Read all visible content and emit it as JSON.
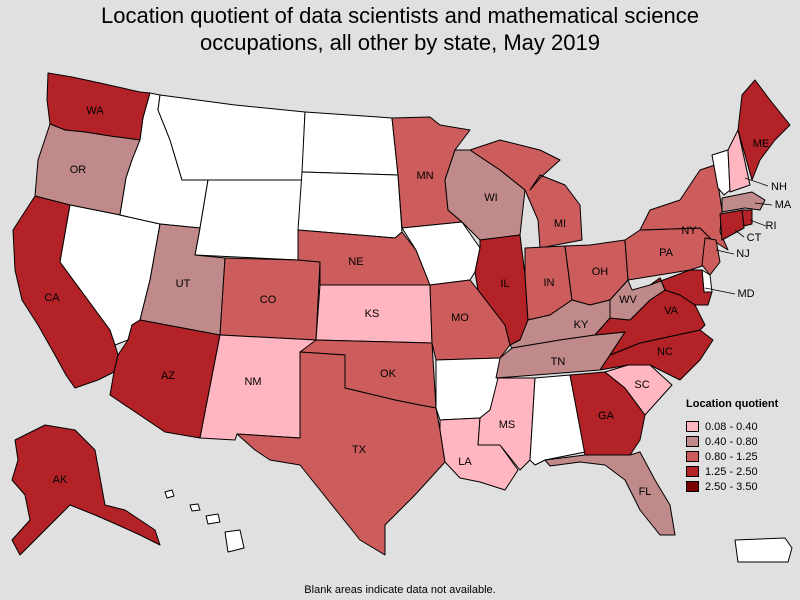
{
  "title_line1": "Location quotient of data scientists and mathematical science",
  "title_line2": "occupations, all other by state, May 2019",
  "footnote": "Blank areas indicate data not available.",
  "legend": {
    "title": "Location quotient",
    "items": [
      {
        "label": "0.08 - 0.40",
        "color": "#ffb6c1"
      },
      {
        "label": "0.40 - 0.80",
        "color": "#c08a8a"
      },
      {
        "label": "0.80 - 1.25",
        "color": "#cd5c5c"
      },
      {
        "label": "1.25 - 2.50",
        "color": "#b22226"
      },
      {
        "label": "2.50 - 3.50",
        "color": "#7b0000"
      }
    ]
  },
  "colors": {
    "none": "#ffffff",
    "c1": "#ffb6c1",
    "c2": "#c08a8a",
    "c3": "#cd5c5c",
    "c4": "#b22226",
    "c5": "#7b0000"
  },
  "states": {
    "WA": {
      "label": "WA",
      "class": "c4"
    },
    "OR": {
      "label": "OR",
      "class": "c2"
    },
    "CA": {
      "label": "CA",
      "class": "c4"
    },
    "NV": {
      "label": "",
      "class": "none"
    },
    "ID": {
      "label": "",
      "class": "none"
    },
    "MT": {
      "label": "",
      "class": "none"
    },
    "WY": {
      "label": "",
      "class": "none"
    },
    "UT": {
      "label": "UT",
      "class": "c2"
    },
    "AZ": {
      "label": "AZ",
      "class": "c4"
    },
    "CO": {
      "label": "CO",
      "class": "c3"
    },
    "NM": {
      "label": "NM",
      "class": "c1"
    },
    "ND": {
      "label": "",
      "class": "none"
    },
    "SD": {
      "label": "",
      "class": "none"
    },
    "NE": {
      "label": "NE",
      "class": "c3"
    },
    "KS": {
      "label": "KS",
      "class": "c1"
    },
    "OK": {
      "label": "OK",
      "class": "c3"
    },
    "TX": {
      "label": "TX",
      "class": "c3"
    },
    "MN": {
      "label": "MN",
      "class": "c3"
    },
    "IA": {
      "label": "",
      "class": "none"
    },
    "MO": {
      "label": "MO",
      "class": "c3"
    },
    "AR": {
      "label": "",
      "class": "none"
    },
    "LA": {
      "label": "LA",
      "class": "c1"
    },
    "WI": {
      "label": "WI",
      "class": "c2"
    },
    "IL": {
      "label": "IL",
      "class": "c4"
    },
    "MI": {
      "label": "MI",
      "class": "c3"
    },
    "IN": {
      "label": "IN",
      "class": "c3"
    },
    "OH": {
      "label": "OH",
      "class": "c3"
    },
    "KY": {
      "label": "KY",
      "class": "c2"
    },
    "TN": {
      "label": "TN",
      "class": "c2"
    },
    "MS": {
      "label": "MS",
      "class": "c1"
    },
    "AL": {
      "label": "",
      "class": "none"
    },
    "GA": {
      "label": "GA",
      "class": "c4"
    },
    "FL": {
      "label": "FL",
      "class": "c2"
    },
    "SC": {
      "label": "SC",
      "class": "c1"
    },
    "NC": {
      "label": "NC",
      "class": "c4"
    },
    "VA": {
      "label": "VA",
      "class": "c4"
    },
    "WV": {
      "label": "WV",
      "class": "c2"
    },
    "PA": {
      "label": "PA",
      "class": "c3"
    },
    "NY": {
      "label": "NY",
      "class": "c3"
    },
    "ME": {
      "label": "ME",
      "class": "c4"
    },
    "VT": {
      "label": "",
      "class": "none"
    },
    "NH": {
      "label": "NH",
      "class": "c1"
    },
    "MA": {
      "label": "MA",
      "class": "c2"
    },
    "CT": {
      "label": "CT",
      "class": "c4"
    },
    "RI": {
      "label": "RI",
      "class": "c4"
    },
    "NJ": {
      "label": "NJ",
      "class": "c3"
    },
    "DE": {
      "label": "",
      "class": "none"
    },
    "MD": {
      "label": "MD",
      "class": "c4"
    },
    "AK": {
      "label": "AK",
      "class": "c4"
    },
    "HI": {
      "label": "",
      "class": "none"
    },
    "PR": {
      "label": "",
      "class": "none"
    }
  }
}
